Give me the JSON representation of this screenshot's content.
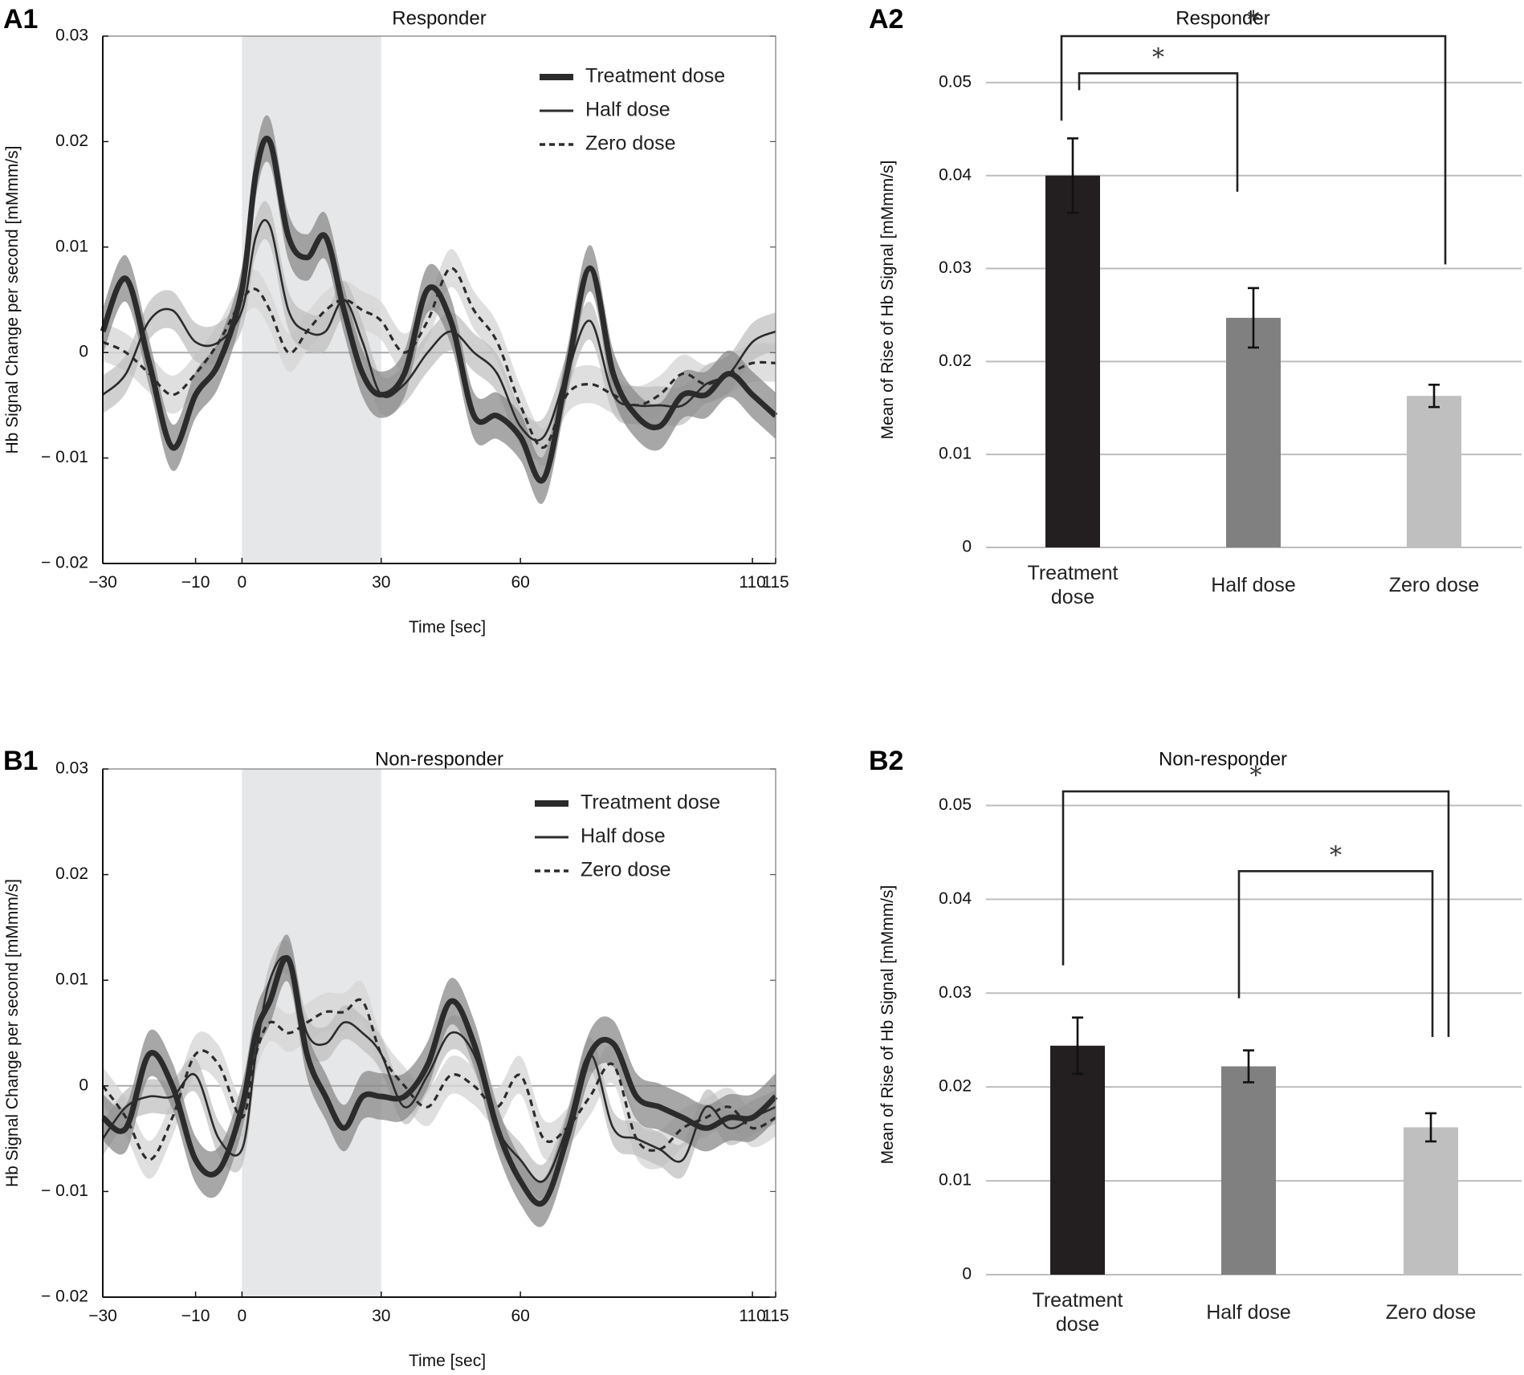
{
  "chart_data": [
    {
      "panel": "A1",
      "type": "line",
      "title": "Responder",
      "xlabel": "Time [sec]",
      "ylabel": "Hb Signal Change per second [mMmm/s]",
      "xlim": [
        -30,
        115
      ],
      "ylim": [
        -0.02,
        0.03
      ],
      "x_ticks": [
        -30,
        -10,
        0,
        30,
        60,
        110,
        115
      ],
      "x_tick_labels": [
        "−30",
        "−10",
        "0",
        "30",
        "60",
        "110",
        "115"
      ],
      "y_ticks": [
        -0.02,
        -0.01,
        0,
        0.01,
        0.02,
        0.03
      ],
      "y_tick_labels": [
        "− 0.02",
        "− 0.01",
        "0",
        "0.01",
        "0.02",
        "0.03"
      ],
      "shaded_interval": [
        0,
        30
      ],
      "legend": [
        "Treatment dose",
        "Half dose",
        "Zero dose"
      ],
      "x": [
        -30,
        -25,
        -20,
        -15,
        -10,
        -5,
        0,
        3,
        6,
        10,
        14,
        18,
        22,
        26,
        30,
        35,
        40,
        45,
        50,
        55,
        60,
        65,
        70,
        75,
        80,
        85,
        90,
        95,
        100,
        105,
        110,
        115
      ],
      "series": [
        {
          "name": "Treatment dose",
          "style": "thick",
          "band": 0.0022,
          "values": [
            0.002,
            0.007,
            -0.001,
            -0.009,
            -0.004,
            -0.001,
            0.006,
            0.017,
            0.02,
            0.011,
            0.009,
            0.011,
            0.004,
            -0.002,
            -0.004,
            -0.002,
            0.006,
            0.003,
            -0.006,
            -0.006,
            -0.008,
            -0.012,
            -0.002,
            0.008,
            -0.002,
            -0.006,
            -0.007,
            -0.004,
            -0.004,
            -0.002,
            -0.004,
            -0.006
          ]
        },
        {
          "name": "Half dose",
          "style": "thin",
          "band": 0.0018,
          "values": [
            -0.004,
            -0.002,
            0.003,
            0.004,
            0.001,
            0.001,
            0.004,
            0.011,
            0.012,
            0.004,
            0.002,
            0.002,
            0.005,
            0.001,
            -0.004,
            -0.003,
            0.0,
            0.002,
            0.0,
            -0.002,
            -0.007,
            -0.008,
            -0.002,
            0.003,
            -0.004,
            -0.005,
            -0.005,
            -0.005,
            -0.003,
            -0.002,
            0.001,
            0.002
          ]
        },
        {
          "name": "Zero dose",
          "style": "dashed",
          "band": 0.0018,
          "values": [
            0.001,
            0.0,
            -0.002,
            -0.004,
            -0.002,
            0.001,
            0.005,
            0.006,
            0.004,
            0.0,
            0.002,
            0.004,
            0.005,
            0.004,
            0.003,
            0.0,
            0.003,
            0.008,
            0.004,
            0.001,
            -0.005,
            -0.009,
            -0.004,
            -0.003,
            -0.004,
            -0.005,
            -0.004,
            -0.002,
            -0.003,
            -0.002,
            -0.001,
            -0.001
          ]
        }
      ]
    },
    {
      "panel": "A2",
      "type": "bar",
      "title": "Responder",
      "xlabel": "",
      "ylabel": "Mean of Rise of Hb Signal [mMmm/s]",
      "ylim": [
        0,
        0.055
      ],
      "y_ticks": [
        0,
        0.01,
        0.02,
        0.03,
        0.04,
        0.05
      ],
      "y_tick_labels": [
        "0",
        "0.01",
        "0.02",
        "0.03",
        "0.04",
        "0.05"
      ],
      "categories": [
        [
          "Treatment",
          "dose"
        ],
        [
          "Half dose"
        ],
        [
          "Zero dose"
        ]
      ],
      "values": [
        0.04,
        0.0247,
        0.0163
      ],
      "errors": [
        0.004,
        0.0032,
        0.0012
      ],
      "colors": [
        "#231f20",
        "#808080",
        "#bfbfbf"
      ],
      "significance": [
        {
          "from": 0,
          "to": 1,
          "label": "*",
          "level": 0.051
        },
        {
          "from": 0,
          "to": 2,
          "label": "*",
          "level": 0.055
        }
      ]
    },
    {
      "panel": "B1",
      "type": "line",
      "title": "Non-responder",
      "xlabel": "Time [sec]",
      "ylabel": "Hb Signal Change per second [mMmm/s]",
      "xlim": [
        -30,
        115
      ],
      "ylim": [
        -0.02,
        0.03
      ],
      "x_ticks": [
        -30,
        -10,
        0,
        30,
        60,
        110,
        115
      ],
      "x_tick_labels": [
        "−30",
        "−10",
        "0",
        "30",
        "60",
        "110",
        "115"
      ],
      "y_ticks": [
        -0.02,
        -0.01,
        0,
        0.01,
        0.02,
        0.03
      ],
      "y_tick_labels": [
        "− 0.02",
        "− 0.01",
        "0",
        "0.01",
        "0.02",
        "0.03"
      ],
      "shaded_interval": [
        0,
        30
      ],
      "legend": [
        "Treatment dose",
        "Half dose",
        "Zero dose"
      ],
      "x": [
        -30,
        -25,
        -20,
        -15,
        -10,
        -5,
        0,
        3,
        6,
        10,
        14,
        18,
        22,
        26,
        30,
        35,
        40,
        45,
        50,
        55,
        60,
        65,
        70,
        75,
        80,
        85,
        90,
        95,
        100,
        105,
        110,
        115
      ],
      "series": [
        {
          "name": "Treatment dose",
          "style": "thick",
          "band": 0.0022,
          "values": [
            -0.003,
            -0.004,
            0.003,
            0.0,
            -0.007,
            -0.008,
            -0.002,
            0.005,
            0.008,
            0.012,
            0.003,
            -0.001,
            -0.004,
            -0.001,
            -0.001,
            -0.001,
            0.002,
            0.008,
            0.004,
            -0.004,
            -0.009,
            -0.011,
            -0.005,
            0.003,
            0.004,
            -0.001,
            -0.002,
            -0.003,
            -0.004,
            -0.003,
            -0.003,
            -0.001
          ]
        },
        {
          "name": "Half dose",
          "style": "thin",
          "band": 0.0016,
          "values": [
            -0.005,
            -0.002,
            -0.001,
            -0.001,
            0.001,
            -0.005,
            -0.006,
            0.003,
            0.01,
            0.012,
            0.005,
            0.004,
            0.006,
            0.005,
            0.003,
            -0.002,
            0.001,
            0.005,
            0.003,
            -0.004,
            -0.007,
            -0.009,
            -0.004,
            0.003,
            -0.004,
            -0.005,
            -0.006,
            -0.007,
            -0.002,
            -0.004,
            -0.003,
            -0.002
          ]
        },
        {
          "name": "Zero dose",
          "style": "dashed",
          "band": 0.0018,
          "values": [
            0.0,
            -0.003,
            -0.007,
            -0.003,
            0.003,
            0.002,
            -0.003,
            0.003,
            0.006,
            0.005,
            0.006,
            0.007,
            0.007,
            0.008,
            0.003,
            0.0,
            -0.002,
            0.001,
            0.0,
            -0.002,
            0.001,
            -0.005,
            -0.004,
            -0.001,
            0.002,
            -0.005,
            -0.006,
            -0.004,
            -0.003,
            -0.002,
            -0.004,
            -0.003
          ]
        }
      ]
    },
    {
      "panel": "B2",
      "type": "bar",
      "title": "Non-responder",
      "xlabel": "",
      "ylabel": "Mean of Rise of Hb Signal [mMmm/s]",
      "ylim": [
        0,
        0.055
      ],
      "y_ticks": [
        0,
        0.01,
        0.02,
        0.03,
        0.04,
        0.05
      ],
      "y_tick_labels": [
        "0",
        "0.01",
        "0.02",
        "0.03",
        "0.04",
        "0.05"
      ],
      "categories": [
        [
          "Treatment",
          "dose"
        ],
        [
          "Half dose"
        ],
        [
          "Zero dose"
        ]
      ],
      "values": [
        0.0244,
        0.0222,
        0.0157
      ],
      "errors": [
        0.003,
        0.0017,
        0.0015
      ],
      "colors": [
        "#231f20",
        "#808080",
        "#bfbfbf"
      ],
      "significance": [
        {
          "from": 1,
          "to": 2,
          "label": "*",
          "level": 0.043
        },
        {
          "from": 0,
          "to": 2,
          "label": "*",
          "level": 0.0515
        }
      ]
    }
  ]
}
